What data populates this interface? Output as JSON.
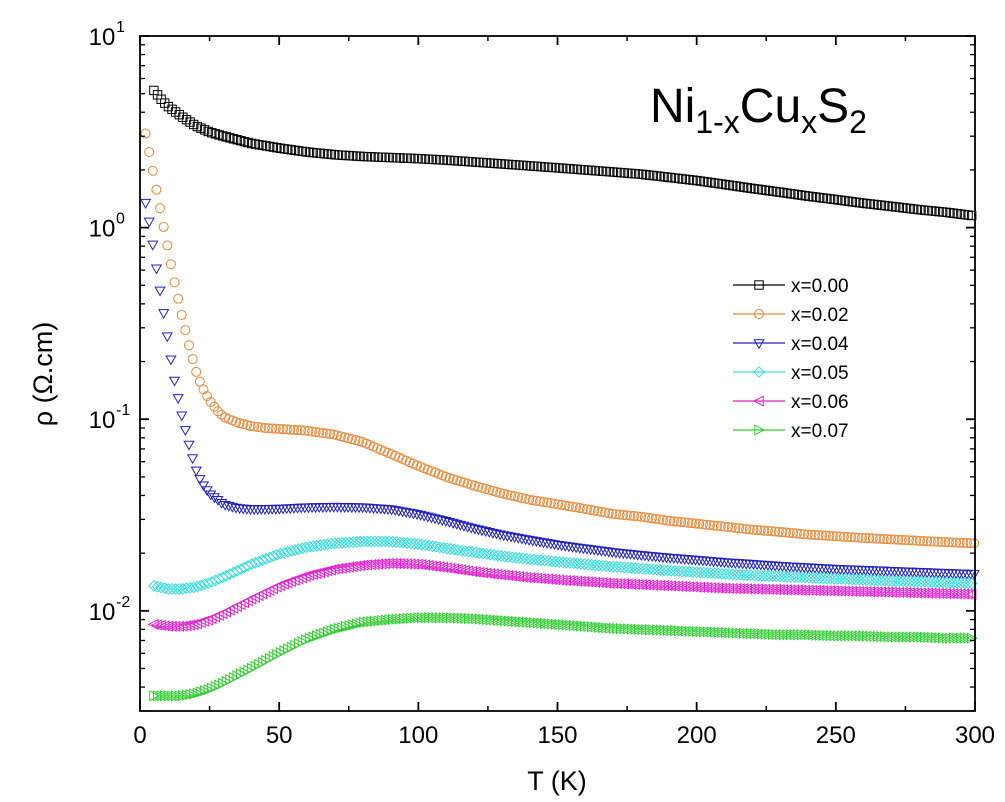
{
  "chart_data": {
    "type": "scatter",
    "title": {
      "base1": "Ni",
      "sub1": "1-x",
      "base2": "Cu",
      "sub2": "x",
      "base3": "S",
      "sub3": "2"
    },
    "xlabel": "T (K)",
    "ylabel": "ρ (Ω.cm)",
    "xlim": [
      0,
      300
    ],
    "ylim": [
      0.003,
      10
    ],
    "yscale": "log",
    "grid": false,
    "legend_position": "right",
    "x_ticks": [
      "0",
      "50",
      "100",
      "150",
      "200",
      "250",
      "300"
    ],
    "x_tick_values": [
      0,
      50,
      100,
      150,
      200,
      250,
      300
    ],
    "y_ticks": [
      {
        "value": 0.01,
        "base": "10",
        "exp": "-2"
      },
      {
        "value": 0.1,
        "base": "10",
        "exp": "-1"
      },
      {
        "value": 1,
        "base": "10",
        "exp": "0"
      },
      {
        "value": 10,
        "base": "10",
        "exp": "1"
      }
    ],
    "series": [
      {
        "name": "x=0.00",
        "color": "#000000",
        "marker": "square",
        "x": [
          5,
          8,
          10,
          15,
          20,
          25,
          30,
          40,
          50,
          60,
          70,
          80,
          90,
          100,
          110,
          120,
          130,
          140,
          150,
          160,
          170,
          180,
          190,
          200,
          210,
          220,
          230,
          240,
          250,
          260,
          270,
          280,
          290,
          300
        ],
        "y": [
          5.2,
          4.6,
          4.3,
          3.8,
          3.4,
          3.15,
          3.0,
          2.75,
          2.6,
          2.48,
          2.4,
          2.35,
          2.32,
          2.29,
          2.25,
          2.2,
          2.15,
          2.1,
          2.05,
          2.0,
          1.95,
          1.9,
          1.83,
          1.76,
          1.68,
          1.6,
          1.53,
          1.46,
          1.4,
          1.34,
          1.29,
          1.24,
          1.2,
          1.15
        ]
      },
      {
        "name": "x=0.02",
        "color": "#E8893A",
        "marker": "circle",
        "x": [
          2,
          4,
          6,
          8,
          10,
          12,
          15,
          18,
          20,
          22,
          25,
          28,
          30,
          35,
          40,
          45,
          50,
          60,
          70,
          80,
          90,
          100,
          110,
          120,
          130,
          140,
          150,
          160,
          170,
          180,
          190,
          200,
          210,
          220,
          230,
          240,
          250,
          260,
          270,
          280,
          290,
          300
        ],
        "y": [
          3.1,
          2.2,
          1.55,
          1.1,
          0.78,
          0.55,
          0.35,
          0.23,
          0.18,
          0.15,
          0.125,
          0.11,
          0.103,
          0.096,
          0.092,
          0.09,
          0.089,
          0.087,
          0.083,
          0.076,
          0.066,
          0.057,
          0.05,
          0.045,
          0.041,
          0.038,
          0.036,
          0.034,
          0.032,
          0.031,
          0.0295,
          0.0285,
          0.0275,
          0.0265,
          0.0258,
          0.025,
          0.0245,
          0.024,
          0.0236,
          0.0232,
          0.0228,
          0.0225
        ]
      },
      {
        "name": "x=0.04",
        "color": "#2222BB",
        "marker": "triangle-down",
        "x": [
          2,
          3,
          4,
          5,
          6,
          8,
          10,
          12,
          15,
          18,
          20,
          22,
          25,
          28,
          30,
          35,
          40,
          50,
          60,
          70,
          80,
          90,
          100,
          110,
          120,
          130,
          140,
          150,
          160,
          170,
          180,
          190,
          200,
          210,
          220,
          230,
          240,
          250,
          260,
          270,
          280,
          290,
          300
        ],
        "y": [
          1.35,
          1.15,
          0.93,
          0.75,
          0.6,
          0.4,
          0.26,
          0.17,
          0.105,
          0.07,
          0.055,
          0.047,
          0.041,
          0.038,
          0.036,
          0.0345,
          0.034,
          0.0342,
          0.0348,
          0.035,
          0.0348,
          0.034,
          0.032,
          0.0295,
          0.027,
          0.025,
          0.0235,
          0.0222,
          0.0212,
          0.0203,
          0.0196,
          0.019,
          0.0185,
          0.018,
          0.0176,
          0.0172,
          0.0169,
          0.0166,
          0.0164,
          0.0162,
          0.016,
          0.0158,
          0.0156
        ]
      },
      {
        "name": "x=0.05",
        "color": "#33DDDD",
        "marker": "diamond",
        "x": [
          5,
          10,
          15,
          20,
          25,
          30,
          40,
          50,
          60,
          70,
          80,
          90,
          100,
          110,
          120,
          130,
          140,
          150,
          160,
          170,
          180,
          190,
          200,
          210,
          220,
          230,
          240,
          250,
          260,
          270,
          280,
          290,
          300
        ],
        "y": [
          0.0135,
          0.013,
          0.013,
          0.0133,
          0.014,
          0.015,
          0.0175,
          0.0198,
          0.0215,
          0.0225,
          0.023,
          0.023,
          0.0223,
          0.0212,
          0.0202,
          0.0193,
          0.0186,
          0.018,
          0.0175,
          0.017,
          0.0166,
          0.0162,
          0.0159,
          0.0156,
          0.0153,
          0.0151,
          0.0149,
          0.0147,
          0.0145,
          0.0143,
          0.0142,
          0.014,
          0.0139
        ]
      },
      {
        "name": "x=0.06",
        "color": "#E020D0",
        "marker": "triangle-left",
        "x": [
          5,
          10,
          15,
          20,
          25,
          30,
          40,
          50,
          60,
          70,
          80,
          90,
          100,
          110,
          120,
          130,
          140,
          150,
          160,
          170,
          180,
          190,
          200,
          210,
          220,
          230,
          240,
          250,
          260,
          270,
          280,
          290,
          300
        ],
        "y": [
          0.0085,
          0.0083,
          0.0083,
          0.0085,
          0.009,
          0.0097,
          0.0115,
          0.0135,
          0.0152,
          0.0165,
          0.0173,
          0.0177,
          0.0175,
          0.0168,
          0.016,
          0.0154,
          0.0149,
          0.0145,
          0.0142,
          0.0139,
          0.0137,
          0.0135,
          0.0133,
          0.0131,
          0.013,
          0.0129,
          0.0128,
          0.0127,
          0.0126,
          0.0125,
          0.0124,
          0.0123,
          0.0122
        ]
      },
      {
        "name": "x=0.07",
        "color": "#33CC33",
        "marker": "triangle-right",
        "x": [
          5,
          10,
          15,
          20,
          25,
          30,
          40,
          50,
          60,
          70,
          80,
          90,
          100,
          110,
          120,
          130,
          140,
          150,
          160,
          170,
          180,
          190,
          200,
          210,
          220,
          230,
          240,
          250,
          260,
          270,
          280,
          290,
          300
        ],
        "y": [
          0.0036,
          0.0036,
          0.0036,
          0.0037,
          0.0039,
          0.0042,
          0.005,
          0.006,
          0.0071,
          0.008,
          0.0087,
          0.009,
          0.0092,
          0.0092,
          0.0091,
          0.0089,
          0.0087,
          0.0085,
          0.0083,
          0.0081,
          0.008,
          0.0079,
          0.0078,
          0.0077,
          0.0076,
          0.0075,
          0.0075,
          0.0074,
          0.0074,
          0.0073,
          0.0073,
          0.0072,
          0.0072
        ]
      }
    ]
  }
}
